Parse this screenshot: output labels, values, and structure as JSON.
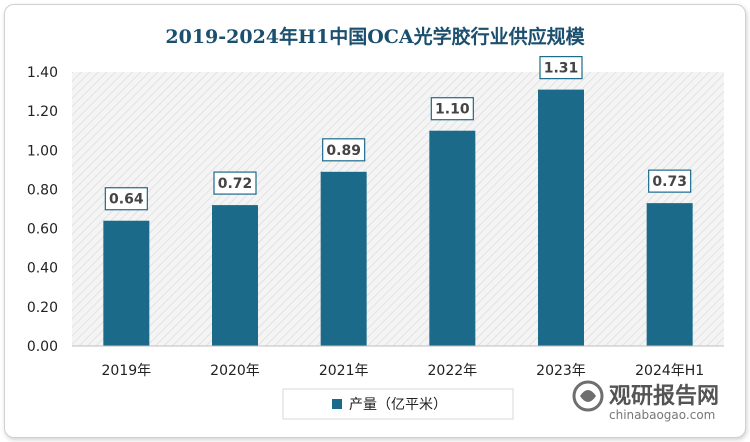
{
  "chart_data": {
    "type": "bar",
    "title": "2019-2024年H1中国OCA光学胶行业供应规模",
    "categories": [
      "2019年",
      "2020年",
      "2021年",
      "2022年",
      "2023年",
      "2024年H1"
    ],
    "series": [
      {
        "name": "产量（亿平米）",
        "values": [
          0.64,
          0.72,
          0.89,
          1.1,
          1.31,
          0.73
        ]
      }
    ],
    "value_labels": [
      "0.64",
      "0.72",
      "0.89",
      "1.10",
      "1.31",
      "0.73"
    ],
    "yticks": [
      "0.00",
      "0.20",
      "0.40",
      "0.60",
      "0.80",
      "1.00",
      "1.20",
      "1.40"
    ],
    "ylim": [
      0,
      1.4
    ],
    "xlabel": "",
    "ylabel": "",
    "legend_position": "bottom",
    "bar_color": "#1c6a8a",
    "text_color": "#1b4f6e"
  },
  "watermark": {
    "name": "观研报告网",
    "url": "chinabaogao.com"
  }
}
